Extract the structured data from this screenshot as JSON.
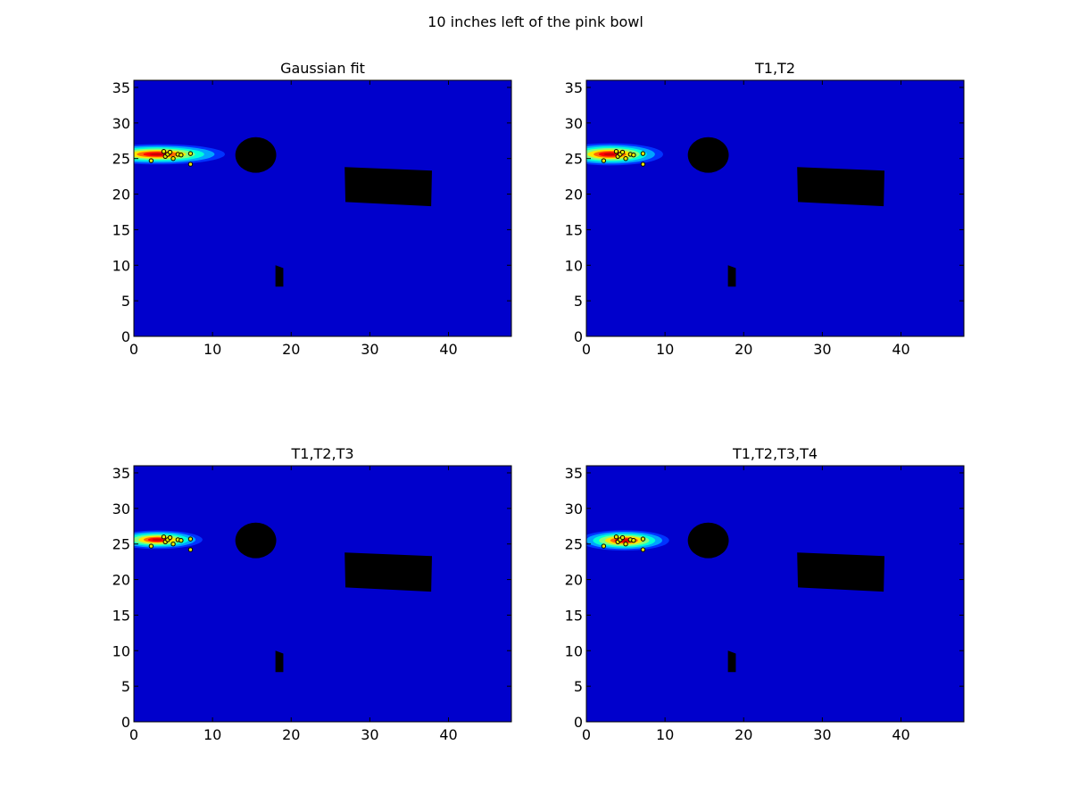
{
  "figure": {
    "suptitle": "10 inches left of the pink bowl"
  },
  "colors": {
    "background": "#0000cc",
    "obstacle": "#000000",
    "jet": [
      "#0000cc",
      "#0033ff",
      "#00a5ff",
      "#00ffd8",
      "#7fff7f",
      "#ffe800",
      "#ff6a00",
      "#ff0000",
      "#cc0000"
    ]
  },
  "chart_data": [
    {
      "type": "heatmap",
      "title": "Gaussian fit",
      "xlim": [
        0,
        48
      ],
      "ylim": [
        0,
        36
      ],
      "xticks": [
        0,
        10,
        20,
        30,
        40
      ],
      "yticks": [
        0,
        5,
        10,
        15,
        20,
        25,
        30,
        35
      ],
      "peak": {
        "x": 3.0,
        "y": 25.6,
        "sx": 3.3,
        "sy": 0.55
      },
      "obstacles": [
        {
          "shape": "ellipse",
          "cx": 15.5,
          "cy": 25.5,
          "rx": 2.6,
          "ry": 2.5
        },
        {
          "shape": "polygon",
          "points": [
            [
              26.8,
              23.8
            ],
            [
              37.9,
              23.3
            ],
            [
              37.8,
              18.3
            ],
            [
              26.9,
              18.9
            ]
          ]
        },
        {
          "shape": "polygon",
          "points": [
            [
              18.0,
              10.0
            ],
            [
              19.0,
              9.6
            ],
            [
              19.0,
              7.0
            ],
            [
              18.0,
              7.0
            ]
          ]
        }
      ],
      "points": [
        [
          2.2,
          24.7
        ],
        [
          3.8,
          26.0
        ],
        [
          4.0,
          25.3
        ],
        [
          4.3,
          25.6
        ],
        [
          4.6,
          25.9
        ],
        [
          5.0,
          25.0
        ],
        [
          5.6,
          25.6
        ],
        [
          6.0,
          25.5
        ],
        [
          7.2,
          25.7
        ],
        [
          7.2,
          24.2
        ]
      ]
    },
    {
      "type": "heatmap",
      "title": "T1,T2",
      "xlim": [
        0,
        48
      ],
      "ylim": [
        0,
        36
      ],
      "xticks": [
        0,
        10,
        20,
        30,
        40
      ],
      "yticks": [
        0,
        5,
        10,
        15,
        20,
        25,
        30,
        35
      ],
      "peak": {
        "x": 3.0,
        "y": 25.6,
        "sx": 2.6,
        "sy": 0.6
      },
      "obstacles": [
        {
          "shape": "ellipse",
          "cx": 15.5,
          "cy": 25.5,
          "rx": 2.6,
          "ry": 2.5
        },
        {
          "shape": "polygon",
          "points": [
            [
              26.8,
              23.8
            ],
            [
              37.9,
              23.3
            ],
            [
              37.8,
              18.3
            ],
            [
              26.9,
              18.9
            ]
          ]
        },
        {
          "shape": "polygon",
          "points": [
            [
              18.0,
              10.0
            ],
            [
              19.0,
              9.6
            ],
            [
              19.0,
              7.0
            ],
            [
              18.0,
              7.0
            ]
          ]
        }
      ],
      "points": [
        [
          2.2,
          24.7
        ],
        [
          3.8,
          26.0
        ],
        [
          4.0,
          25.3
        ],
        [
          4.3,
          25.6
        ],
        [
          4.6,
          25.9
        ],
        [
          5.0,
          25.0
        ],
        [
          5.6,
          25.6
        ],
        [
          6.0,
          25.5
        ],
        [
          7.2,
          25.7
        ],
        [
          7.2,
          24.2
        ]
      ]
    },
    {
      "type": "heatmap",
      "title": "T1,T2,T3",
      "xlim": [
        0,
        48
      ],
      "ylim": [
        0,
        36
      ],
      "xticks": [
        0,
        10,
        20,
        30,
        40
      ],
      "yticks": [
        0,
        5,
        10,
        15,
        20,
        25,
        30,
        35
      ],
      "peak": {
        "x": 3.0,
        "y": 25.6,
        "sx": 2.2,
        "sy": 0.5
      },
      "obstacles": [
        {
          "shape": "ellipse",
          "cx": 15.5,
          "cy": 25.5,
          "rx": 2.6,
          "ry": 2.5
        },
        {
          "shape": "polygon",
          "points": [
            [
              26.8,
              23.8
            ],
            [
              37.9,
              23.3
            ],
            [
              37.8,
              18.3
            ],
            [
              26.9,
              18.9
            ]
          ]
        },
        {
          "shape": "polygon",
          "points": [
            [
              18.0,
              10.0
            ],
            [
              19.0,
              9.6
            ],
            [
              19.0,
              7.0
            ],
            [
              18.0,
              7.0
            ]
          ]
        }
      ],
      "points": [
        [
          2.2,
          24.7
        ],
        [
          3.8,
          26.0
        ],
        [
          4.0,
          25.3
        ],
        [
          4.3,
          25.6
        ],
        [
          4.6,
          25.9
        ],
        [
          5.0,
          25.0
        ],
        [
          5.6,
          25.6
        ],
        [
          6.0,
          25.5
        ],
        [
          7.2,
          25.7
        ],
        [
          7.2,
          24.2
        ]
      ]
    },
    {
      "type": "heatmap",
      "title": "T1,T2,T3,T4",
      "xlim": [
        0,
        48
      ],
      "ylim": [
        0,
        36
      ],
      "xticks": [
        0,
        10,
        20,
        30,
        40
      ],
      "yticks": [
        0,
        5,
        10,
        15,
        20,
        25,
        30,
        35
      ],
      "peak": {
        "x": 4.8,
        "y": 25.5,
        "sx": 2.2,
        "sy": 0.55
      },
      "obstacles": [
        {
          "shape": "ellipse",
          "cx": 15.5,
          "cy": 25.5,
          "rx": 2.6,
          "ry": 2.5
        },
        {
          "shape": "polygon",
          "points": [
            [
              26.8,
              23.8
            ],
            [
              37.9,
              23.3
            ],
            [
              37.8,
              18.3
            ],
            [
              26.9,
              18.9
            ]
          ]
        },
        {
          "shape": "polygon",
          "points": [
            [
              18.0,
              10.0
            ],
            [
              19.0,
              9.6
            ],
            [
              19.0,
              7.0
            ],
            [
              18.0,
              7.0
            ]
          ]
        }
      ],
      "points": [
        [
          2.2,
          24.7
        ],
        [
          3.8,
          26.0
        ],
        [
          4.0,
          25.3
        ],
        [
          4.3,
          25.6
        ],
        [
          4.6,
          25.9
        ],
        [
          5.0,
          25.0
        ],
        [
          5.6,
          25.6
        ],
        [
          6.0,
          25.5
        ],
        [
          7.2,
          25.7
        ],
        [
          7.2,
          24.2
        ]
      ]
    }
  ]
}
